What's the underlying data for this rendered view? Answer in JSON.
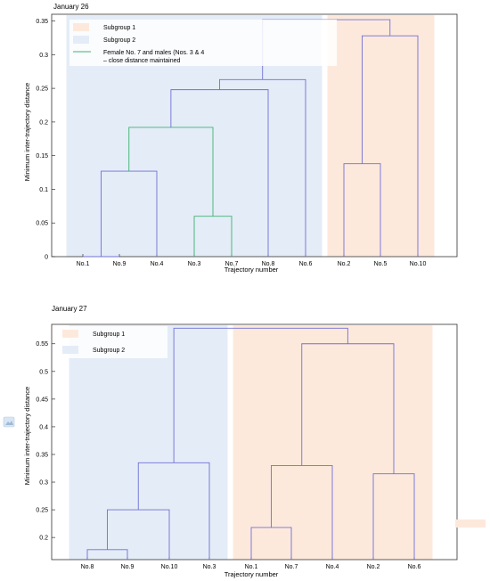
{
  "chart_data": [
    {
      "type": "dendrogram",
      "title": "January 26",
      "xlabel": "Trajectory number",
      "ylabel": "Minimum inter-trajectory distance",
      "ylim": [
        0,
        0.36
      ],
      "yticks": [
        0,
        0.05,
        0.1,
        0.15,
        0.2,
        0.25,
        0.3,
        0.35
      ],
      "categories": [
        "No.1",
        "No.9",
        "No.4",
        "No.3",
        "No.7",
        "No.8",
        "No.6",
        "No.2",
        "No.5",
        "No.10"
      ],
      "legend": [
        {
          "label": "Subgroup 1",
          "kind": "patch",
          "color": "#fde9dc"
        },
        {
          "label": "Subgroup 2",
          "kind": "patch",
          "color": "#e4ecf7"
        },
        {
          "label": "Female No. 7 and males (Nos. 3 & 4\n– close distance maintained",
          "kind": "line",
          "color": "#3cb371"
        }
      ],
      "shading": [
        {
          "group": "Subgroup 2",
          "from": 0,
          "to": 6,
          "color": "#e4ecf7"
        },
        {
          "group": "Subgroup 1",
          "from": 7,
          "to": 9,
          "color": "#fde9dc"
        }
      ],
      "merges": [
        {
          "left": "No.1",
          "right": "No.9",
          "height": 0.0,
          "color": "#6f70d6"
        },
        {
          "left": "No.1+No.9",
          "right": "No.4",
          "height": 0.127,
          "color": "#6f70d6"
        },
        {
          "left": "No.3",
          "right": "No.7",
          "height": 0.06,
          "color": "#3cb371"
        },
        {
          "left": "No.1+No.9+No.4",
          "right": "No.3+No.7",
          "height": 0.192,
          "color": "#3cb371"
        },
        {
          "left": "No.1–No.7",
          "right": "No.8",
          "height": 0.248,
          "color": "#6f70d6"
        },
        {
          "left": "No.1–No.8",
          "right": "No.6",
          "height": 0.263,
          "color": "#6f70d6"
        },
        {
          "left": "No.2",
          "right": "No.5",
          "height": 0.138,
          "color": "#6f70d6"
        },
        {
          "left": "No.2+No.5",
          "right": "No.10",
          "height": 0.328,
          "color": "#6f70d6"
        },
        {
          "left": "Subgroup 2",
          "right": "Subgroup 1",
          "height": 0.352,
          "color": "#6f70d6"
        }
      ]
    },
    {
      "type": "dendrogram",
      "title": "January 27",
      "xlabel": "Trajectory number",
      "ylabel": "Minimum inter-trajectory distance",
      "ylim": [
        0.16,
        0.585
      ],
      "yticks": [
        0.2,
        0.25,
        0.3,
        0.35,
        0.4,
        0.45,
        0.5,
        0.55
      ],
      "categories": [
        "No.8",
        "No.9",
        "No.10",
        "No.3",
        "No.1",
        "No.7",
        "No.4",
        "No.2",
        "No.6"
      ],
      "legend": [
        {
          "label": "Subgroup 1",
          "kind": "patch",
          "color": "#fde9dc"
        },
        {
          "label": "Subgroup 2",
          "kind": "patch",
          "color": "#e4ecf7"
        }
      ],
      "shading": [
        {
          "group": "Subgroup 2",
          "from": 0,
          "to": 3,
          "color": "#e4ecf7"
        },
        {
          "group": "Subgroup 1",
          "from": 4,
          "to": 8,
          "color": "#fde9dc"
        }
      ],
      "merges": [
        {
          "left": "No.8",
          "right": "No.9",
          "height": 0.178,
          "color": "#6f70d6"
        },
        {
          "left": "No.8+No.9",
          "right": "No.10",
          "height": 0.25,
          "color": "#6f70d6"
        },
        {
          "left": "No.8+No.9+No.10",
          "right": "No.3",
          "height": 0.335,
          "color": "#6f70d6"
        },
        {
          "left": "No.1",
          "right": "No.7",
          "height": 0.218,
          "color": "#6f70d6"
        },
        {
          "left": "No.1+No.7",
          "right": "No.4",
          "height": 0.33,
          "color": "#6f70d6"
        },
        {
          "left": "No.2",
          "right": "No.6",
          "height": 0.315,
          "color": "#6f70d6"
        },
        {
          "left": "No.1+No.7+No.4",
          "right": "No.2+No.6",
          "height": 0.55,
          "color": "#6f70d6"
        },
        {
          "left": "Subgroup 2",
          "right": "Subgroup 1",
          "height": 0.578,
          "color": "#6f70d6"
        }
      ]
    }
  ]
}
